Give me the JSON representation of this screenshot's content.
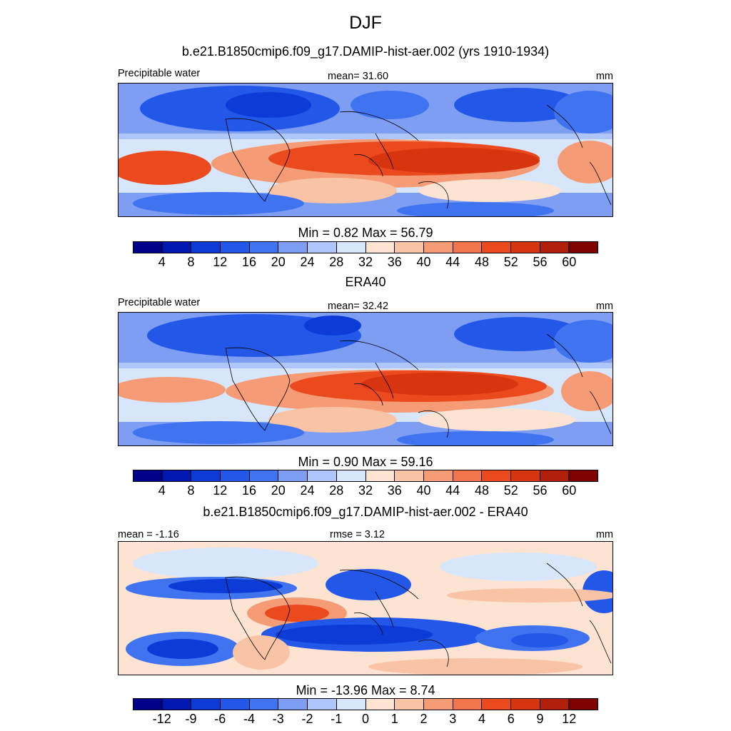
{
  "title": "DJF",
  "panel1": {
    "title": "b.e21.B1850cmip6.f09_g17.DAMIP-hist-aer.002 (yrs 1910-1934)",
    "left_label": "Precipitable water",
    "center_label": "mean=  31.60",
    "right_label": "mm",
    "minmax": "Min =   0.82 Max =  56.79"
  },
  "panel2": {
    "title": "ERA40",
    "left_label": "Precipitable water",
    "center_label": "mean=  32.42",
    "right_label": "mm",
    "minmax": "Min =   0.90 Max =  59.16"
  },
  "panel3": {
    "title": "b.e21.B1850cmip6.f09_g17.DAMIP-hist-aer.002 - ERA40",
    "left_label": "mean =  -1.16",
    "center_label": "rmse =   3.12",
    "right_label": "mm",
    "minmax": "Min = -13.96 Max =   8.74"
  },
  "colorbar_abs": {
    "colors": [
      "#00008a",
      "#0018b0",
      "#0c3bd8",
      "#2357e8",
      "#4073f0",
      "#7d9ef2",
      "#aec6fa",
      "#d8e6fc",
      "#fde3d2",
      "#f9c4a5",
      "#f59c77",
      "#f2764b",
      "#ea4a1e",
      "#d73410",
      "#b1200a",
      "#7f0000"
    ],
    "labels": [
      "4",
      "8",
      "12",
      "16",
      "20",
      "24",
      "28",
      "32",
      "36",
      "40",
      "44",
      "48",
      "52",
      "56",
      "60"
    ]
  },
  "colorbar_diff": {
    "colors": [
      "#00008a",
      "#0018b0",
      "#0c3bd8",
      "#2357e8",
      "#4073f0",
      "#7d9ef2",
      "#aec6fa",
      "#d8e6fc",
      "#fde3d2",
      "#f9c4a5",
      "#f59c77",
      "#f2764b",
      "#ea4a1e",
      "#d73410",
      "#b1200a",
      "#7f0000"
    ],
    "labels": [
      "-12",
      "-9",
      "-6",
      "-4",
      "-3",
      "-2",
      "-1",
      "0",
      "1",
      "2",
      "3",
      "4",
      "6",
      "9",
      "12"
    ]
  }
}
